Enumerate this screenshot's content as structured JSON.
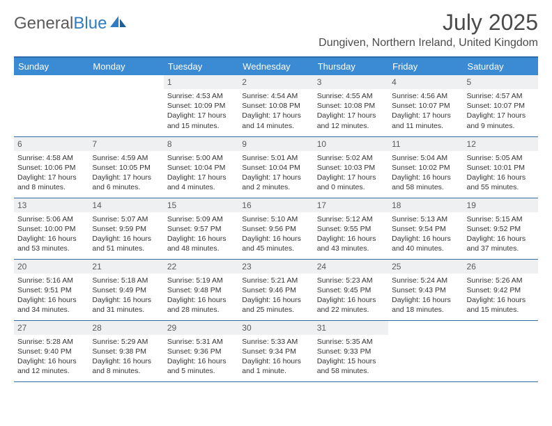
{
  "brand": {
    "part1": "General",
    "part2": "Blue"
  },
  "title": "July 2025",
  "location": "Dungiven, Northern Ireland, United Kingdom",
  "colors": {
    "header_bg": "#3b8bd4",
    "header_border": "#2f6aa8",
    "daynum_bg": "#eef0f1",
    "text": "#333333",
    "brand_grey": "#5a5a5a",
    "brand_blue": "#2f7cc4"
  },
  "fonts": {
    "title_fontsize": 32,
    "location_fontsize": 16,
    "dayhead_fontsize": 13,
    "daynum_fontsize": 12,
    "content_fontsize": 10.5
  },
  "dayHeaders": [
    "Sunday",
    "Monday",
    "Tuesday",
    "Wednesday",
    "Thursday",
    "Friday",
    "Saturday"
  ],
  "weeks": [
    [
      null,
      null,
      {
        "num": "1",
        "sunrise": "4:53 AM",
        "sunset": "10:09 PM",
        "daylight": "17 hours and 15 minutes."
      },
      {
        "num": "2",
        "sunrise": "4:54 AM",
        "sunset": "10:08 PM",
        "daylight": "17 hours and 14 minutes."
      },
      {
        "num": "3",
        "sunrise": "4:55 AM",
        "sunset": "10:08 PM",
        "daylight": "17 hours and 12 minutes."
      },
      {
        "num": "4",
        "sunrise": "4:56 AM",
        "sunset": "10:07 PM",
        "daylight": "17 hours and 11 minutes."
      },
      {
        "num": "5",
        "sunrise": "4:57 AM",
        "sunset": "10:07 PM",
        "daylight": "17 hours and 9 minutes."
      }
    ],
    [
      {
        "num": "6",
        "sunrise": "4:58 AM",
        "sunset": "10:06 PM",
        "daylight": "17 hours and 8 minutes."
      },
      {
        "num": "7",
        "sunrise": "4:59 AM",
        "sunset": "10:05 PM",
        "daylight": "17 hours and 6 minutes."
      },
      {
        "num": "8",
        "sunrise": "5:00 AM",
        "sunset": "10:04 PM",
        "daylight": "17 hours and 4 minutes."
      },
      {
        "num": "9",
        "sunrise": "5:01 AM",
        "sunset": "10:04 PM",
        "daylight": "17 hours and 2 minutes."
      },
      {
        "num": "10",
        "sunrise": "5:02 AM",
        "sunset": "10:03 PM",
        "daylight": "17 hours and 0 minutes."
      },
      {
        "num": "11",
        "sunrise": "5:04 AM",
        "sunset": "10:02 PM",
        "daylight": "16 hours and 58 minutes."
      },
      {
        "num": "12",
        "sunrise": "5:05 AM",
        "sunset": "10:01 PM",
        "daylight": "16 hours and 55 minutes."
      }
    ],
    [
      {
        "num": "13",
        "sunrise": "5:06 AM",
        "sunset": "10:00 PM",
        "daylight": "16 hours and 53 minutes."
      },
      {
        "num": "14",
        "sunrise": "5:07 AM",
        "sunset": "9:59 PM",
        "daylight": "16 hours and 51 minutes."
      },
      {
        "num": "15",
        "sunrise": "5:09 AM",
        "sunset": "9:57 PM",
        "daylight": "16 hours and 48 minutes."
      },
      {
        "num": "16",
        "sunrise": "5:10 AM",
        "sunset": "9:56 PM",
        "daylight": "16 hours and 45 minutes."
      },
      {
        "num": "17",
        "sunrise": "5:12 AM",
        "sunset": "9:55 PM",
        "daylight": "16 hours and 43 minutes."
      },
      {
        "num": "18",
        "sunrise": "5:13 AM",
        "sunset": "9:54 PM",
        "daylight": "16 hours and 40 minutes."
      },
      {
        "num": "19",
        "sunrise": "5:15 AM",
        "sunset": "9:52 PM",
        "daylight": "16 hours and 37 minutes."
      }
    ],
    [
      {
        "num": "20",
        "sunrise": "5:16 AM",
        "sunset": "9:51 PM",
        "daylight": "16 hours and 34 minutes."
      },
      {
        "num": "21",
        "sunrise": "5:18 AM",
        "sunset": "9:49 PM",
        "daylight": "16 hours and 31 minutes."
      },
      {
        "num": "22",
        "sunrise": "5:19 AM",
        "sunset": "9:48 PM",
        "daylight": "16 hours and 28 minutes."
      },
      {
        "num": "23",
        "sunrise": "5:21 AM",
        "sunset": "9:46 PM",
        "daylight": "16 hours and 25 minutes."
      },
      {
        "num": "24",
        "sunrise": "5:23 AM",
        "sunset": "9:45 PM",
        "daylight": "16 hours and 22 minutes."
      },
      {
        "num": "25",
        "sunrise": "5:24 AM",
        "sunset": "9:43 PM",
        "daylight": "16 hours and 18 minutes."
      },
      {
        "num": "26",
        "sunrise": "5:26 AM",
        "sunset": "9:42 PM",
        "daylight": "16 hours and 15 minutes."
      }
    ],
    [
      {
        "num": "27",
        "sunrise": "5:28 AM",
        "sunset": "9:40 PM",
        "daylight": "16 hours and 12 minutes."
      },
      {
        "num": "28",
        "sunrise": "5:29 AM",
        "sunset": "9:38 PM",
        "daylight": "16 hours and 8 minutes."
      },
      {
        "num": "29",
        "sunrise": "5:31 AM",
        "sunset": "9:36 PM",
        "daylight": "16 hours and 5 minutes."
      },
      {
        "num": "30",
        "sunrise": "5:33 AM",
        "sunset": "9:34 PM",
        "daylight": "16 hours and 1 minute."
      },
      {
        "num": "31",
        "sunrise": "5:35 AM",
        "sunset": "9:33 PM",
        "daylight": "15 hours and 58 minutes."
      },
      null,
      null
    ]
  ],
  "labels": {
    "sunrise": "Sunrise:",
    "sunset": "Sunset:",
    "daylight": "Daylight:"
  }
}
